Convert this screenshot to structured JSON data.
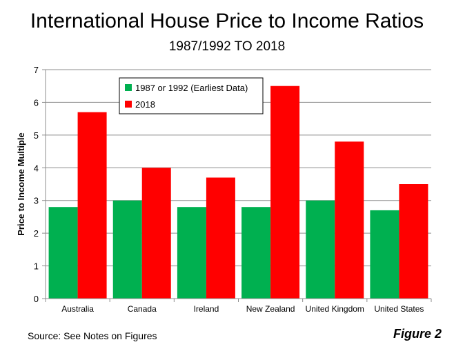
{
  "chart_data": {
    "type": "bar",
    "title": "International House Price to Income Ratios",
    "subtitle": "1987/1992 TO 2018",
    "xlabel": "",
    "ylabel": "Price to Income Multiple",
    "ylim": [
      0,
      7
    ],
    "yticks": [
      "0",
      "1",
      "2",
      "3",
      "4",
      "5",
      "6",
      "7"
    ],
    "grid": true,
    "legend_position": "top-center",
    "categories": [
      "Australia",
      "Canada",
      "Ireland",
      "New Zealand",
      "United Kingdom",
      "United States"
    ],
    "series": [
      {
        "name": "1987 or 1992 (Earliest Data)",
        "color": "#00b050",
        "values": [
          2.8,
          3.0,
          2.8,
          2.8,
          3.0,
          2.7
        ]
      },
      {
        "name": "2018",
        "color": "#ff0000",
        "values": [
          5.7,
          4.0,
          3.7,
          6.5,
          4.8,
          3.5
        ]
      }
    ]
  },
  "footer": {
    "source": "Source: See Notes on Figures",
    "figure_label": "Figure 2"
  }
}
